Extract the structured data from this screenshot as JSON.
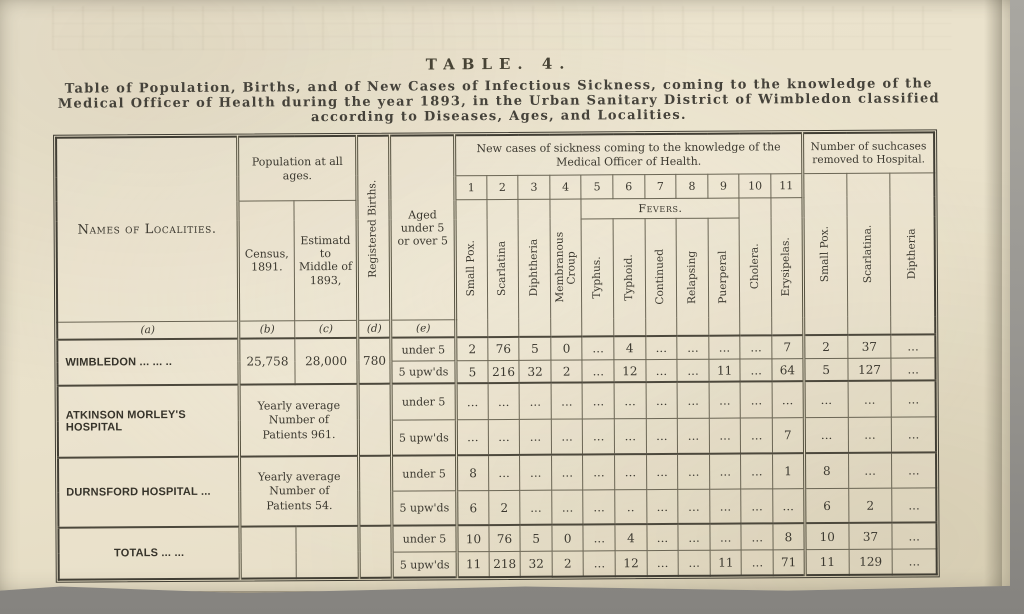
{
  "page": {
    "title": "TABLE. 4.",
    "subtitle": "Table of Population, Births, and of New Cases of Infectious Sickness, coming to the knowledge of the Medical Officer of Health during the year 1893, in the Urban Sanitary District of Wimbledon classified according to Diseases, Ages, and Localities."
  },
  "table": {
    "headers": {
      "localities": "Names of Localities.",
      "population": "Population at all ages.",
      "census": "Census, 1891.",
      "estimated": "Estimatd to Middle of 1893,",
      "births": "Registered Births.",
      "aged": "Aged under 5 or over 5",
      "sickness_group": "New cases of sickness coming to the knowledge of the Medical Officer of Health.",
      "hospital_group": "Number of suchcases removed to Hospital.",
      "fevers": "Fevers.",
      "numbers": [
        "1",
        "2",
        "3",
        "4",
        "5",
        "6",
        "7",
        "8",
        "9",
        "10",
        "11"
      ],
      "keys": {
        "a": "(a)",
        "b": "(b)",
        "c": "(c)",
        "d": "(d)",
        "e": "(e)"
      },
      "disease_cols": [
        "Small Pox.",
        "Scarlatina",
        "Diphtheria",
        "Membranous Croup",
        "Typhus.",
        "Typhoid.",
        "Continued",
        "Relapsing",
        "Puerperal",
        "Cholera.",
        "Erysipelas."
      ],
      "hospital_cols": [
        "Small Pox.",
        "Scarlatina.",
        "Diptheria"
      ]
    },
    "rows": [
      {
        "name": "WIMBLEDON ... ... ..",
        "census": "25,758",
        "estimated": "28,000",
        "births": "780",
        "sub": [
          {
            "aged": "under 5",
            "cases": [
              "2",
              "76",
              "5",
              "0",
              "...",
              "4",
              "...",
              "...",
              "...",
              "...",
              "7"
            ],
            "hospital": [
              "2",
              "37",
              "..."
            ]
          },
          {
            "aged": "5 upw'ds",
            "cases": [
              "5",
              "216",
              "32",
              "2",
              "...",
              "12",
              "...",
              "...",
              "11",
              "...",
              "64"
            ],
            "hospital": [
              "5",
              "127",
              "..."
            ]
          }
        ]
      },
      {
        "name": "ATKINSON MORLEY'S HOSPITAL",
        "population_note": "Yearly average Number of Patients 961.",
        "births": "",
        "sub": [
          {
            "aged": "under 5",
            "cases": [
              "...",
              "...",
              "...",
              "...",
              "...",
              "...",
              "...",
              "...",
              "...",
              "...",
              "..."
            ],
            "hospital": [
              "...",
              "...",
              "..."
            ]
          },
          {
            "aged": "5 upw'ds",
            "cases": [
              "...",
              "...",
              "...",
              "...",
              "...",
              "...",
              "...",
              "...",
              "...",
              "...",
              "7"
            ],
            "hospital": [
              "...",
              "...",
              "..."
            ]
          }
        ]
      },
      {
        "name": "DURNSFORD HOSPITAL ...",
        "population_note": "Yearly average Number of Patients 54.",
        "births": "",
        "sub": [
          {
            "aged": "under 5",
            "cases": [
              "8",
              "...",
              "...",
              "...",
              "...",
              "...",
              "...",
              "...",
              "...",
              "...",
              "1"
            ],
            "hospital": [
              "8",
              "...",
              "..."
            ]
          },
          {
            "aged": "5 upw'ds",
            "cases": [
              "6",
              "2",
              "...",
              "...",
              "...",
              "..",
              "...",
              "...",
              "...",
              "...",
              "..."
            ],
            "hospital": [
              "6",
              "2",
              "..."
            ]
          }
        ]
      },
      {
        "name": "TOTALS ... ...",
        "census": "",
        "estimated": "",
        "births": "",
        "sub": [
          {
            "aged": "under 5",
            "cases": [
              "10",
              "76",
              "5",
              "0",
              "...",
              "4",
              "...",
              "...",
              "...",
              "...",
              "8"
            ],
            "hospital": [
              "10",
              "37",
              "..."
            ]
          },
          {
            "aged": "5 upw'ds",
            "cases": [
              "11",
              "218",
              "32",
              "2",
              "...",
              "12",
              "...",
              "...",
              "11",
              "...",
              "71"
            ],
            "hospital": [
              "11",
              "129",
              "..."
            ]
          }
        ]
      }
    ]
  }
}
